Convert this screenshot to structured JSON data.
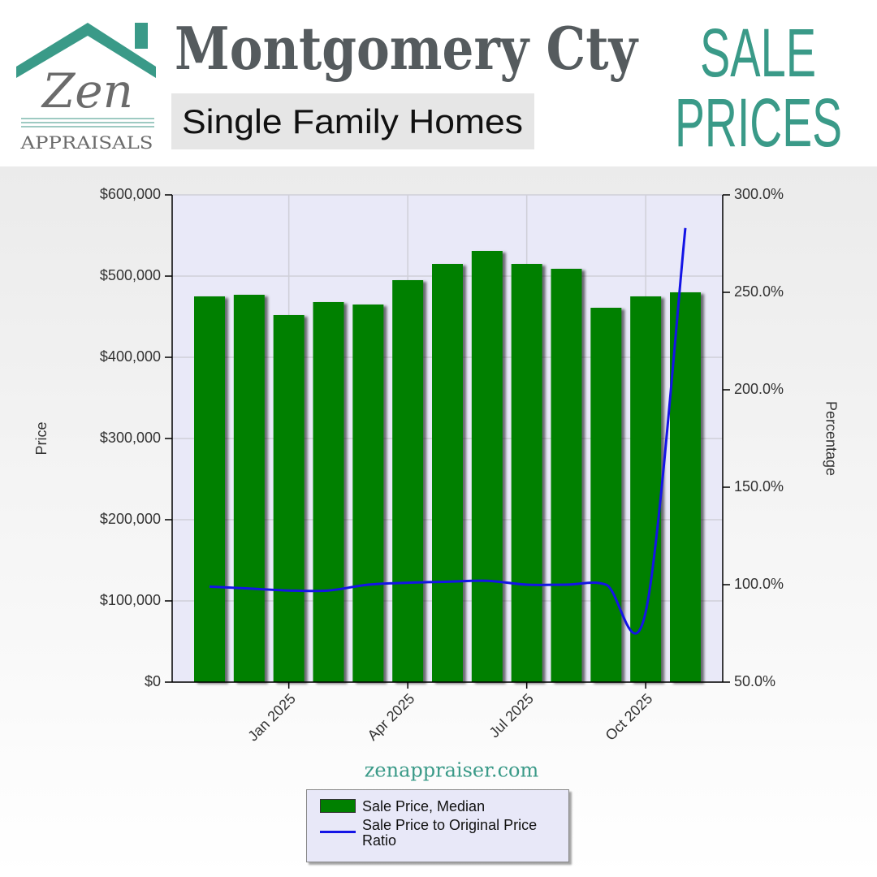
{
  "brand": {
    "logo_word": "Zen",
    "logo_sub": "APPRAISALS"
  },
  "header": {
    "title": "Montgomery Cty",
    "subtitle": "Single Family Homes",
    "tag_line1": "SALE",
    "tag_line2": "PRICES"
  },
  "footer": {
    "website": "zenappraiser.com"
  },
  "chart_data": {
    "type": "bar",
    "categories": [
      null,
      null,
      "Jan 2025",
      null,
      null,
      "Apr 2025",
      null,
      null,
      "Jul 2025",
      null,
      null,
      "Oct 2025",
      null
    ],
    "series": [
      {
        "name": "Sale Price, Median",
        "color": "#008000",
        "type": "bar",
        "values": [
          475000,
          477000,
          452000,
          468000,
          465000,
          495000,
          515000,
          531000,
          515000,
          509000,
          461000,
          475000,
          480000
        ]
      },
      {
        "name": "Sale Price to Original Price Ratio",
        "color": "#1414e6",
        "type": "line",
        "axis": "y2",
        "values": [
          99,
          98,
          97,
          97,
          100,
          101,
          101.5,
          102,
          100,
          100,
          100,
          86,
          283
        ]
      }
    ],
    "y_label": "Price",
    "y2_label": "Percentage",
    "ylim": [
      0,
      600000
    ],
    "yticks": [
      {
        "value": 0,
        "label": "$0"
      },
      {
        "value": 100000,
        "label": "$100,000"
      },
      {
        "value": 200000,
        "label": "$200,000"
      },
      {
        "value": 300000,
        "label": "$300,000"
      },
      {
        "value": 400000,
        "label": "$400,000"
      },
      {
        "value": 500000,
        "label": "$500,000"
      },
      {
        "value": 600000,
        "label": "$600,000"
      }
    ],
    "y2lim": [
      50,
      300
    ],
    "y2ticks": [
      {
        "value": 50,
        "label": "50.0%"
      },
      {
        "value": 100,
        "label": "100.0%"
      },
      {
        "value": 150,
        "label": "150.0%"
      },
      {
        "value": 200,
        "label": "200.0%"
      },
      {
        "value": 250,
        "label": "250.0%"
      },
      {
        "value": 300,
        "label": "300.0%"
      }
    ],
    "grid": true,
    "legend": "bottom"
  }
}
